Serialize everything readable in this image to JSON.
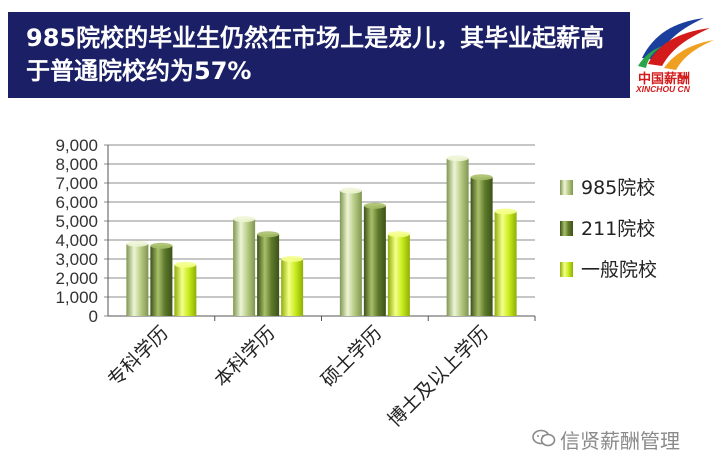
{
  "header": {
    "title": "985院校的毕业生仍然在市场上是宠儿，其毕业起薪高于普通院校约为57%"
  },
  "logo": {
    "cn_text": "中国薪酬",
    "en_text": "XINCHOU CN"
  },
  "watermark": {
    "text": "信贤薪酬管理"
  },
  "colors": {
    "banner": "#1b1f66",
    "series_985": "#c8d9a0",
    "series_211": "#6f8a3c",
    "series_general": "#c8ec1c"
  },
  "chart_data": {
    "type": "bar",
    "title": "",
    "xlabel": "",
    "ylabel": "",
    "ylim": [
      0,
      9000
    ],
    "yticks": [
      "0",
      "1,000",
      "2,000",
      "3,000",
      "4,000",
      "5,000",
      "6,000",
      "7,000",
      "8,000",
      "9,000"
    ],
    "categories": [
      "专科学历",
      "本科学历",
      "硕士学历",
      "博士及以上学历"
    ],
    "series": [
      {
        "name": "985院校",
        "values": [
          3800,
          5100,
          6600,
          8300
        ]
      },
      {
        "name": "211院校",
        "values": [
          3700,
          4300,
          5800,
          7300
        ]
      },
      {
        "name": "一般院校",
        "values": [
          2700,
          3000,
          4300,
          5500
        ]
      }
    ],
    "grid": true,
    "legend": "right"
  }
}
